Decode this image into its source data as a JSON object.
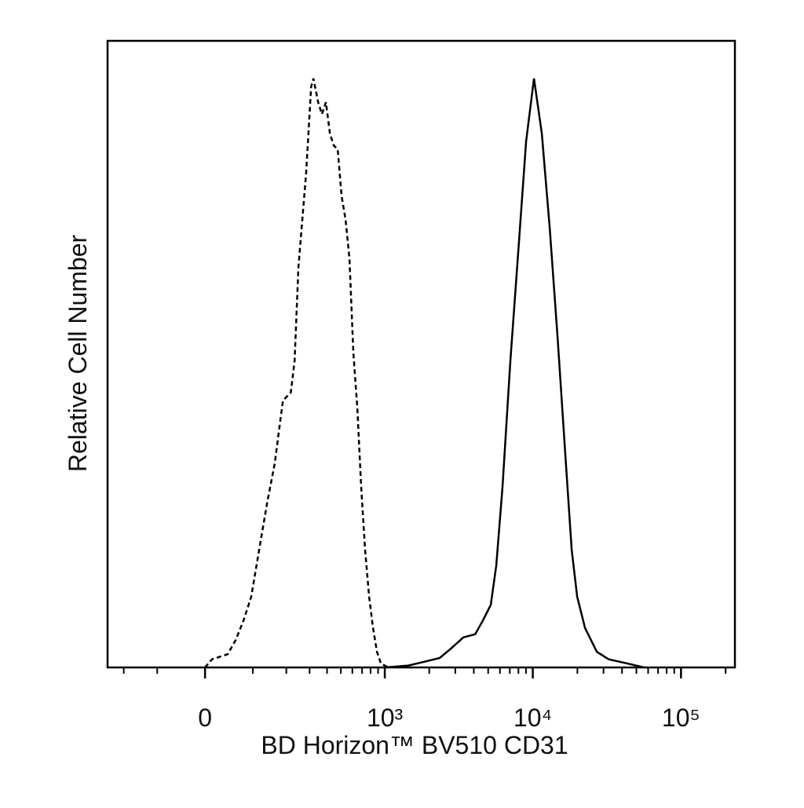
{
  "chart_data": {
    "type": "line",
    "xlabel": "BD Horizon™ BV510 CD31",
    "ylabel": "Relative Cell Number",
    "xscale": "biexponential",
    "xlim": [
      -266,
      231000
    ],
    "ylim": [
      0,
      100
    ],
    "xticks": [
      0,
      {
        "value": 1000,
        "label": "10³"
      },
      {
        "value": 10000,
        "label": "10⁴"
      },
      {
        "value": 100000,
        "label": "10⁵"
      }
    ],
    "xminorticks": [
      -200,
      -100,
      100,
      200,
      300,
      400,
      500,
      600,
      700,
      800,
      900,
      2000,
      3000,
      4000,
      5000,
      6000,
      7000,
      8000,
      9000,
      20000,
      30000,
      40000,
      50000,
      60000,
      70000,
      80000,
      90000,
      200000
    ],
    "series": [
      {
        "color": "#000000",
        "dash": true,
        "x": [
          0,
          13.5,
          44,
          61,
          78,
          96,
          116,
          138,
          161,
          174,
          188,
          217,
          232,
          248,
          283,
          308,
          320,
          346,
          368,
          393,
          419,
          446,
          475,
          506,
          539,
          573,
          610,
          649,
          690,
          734,
          782,
          832,
          884,
          942,
          1064
        ],
        "values": [
          0,
          1.3,
          2.1,
          4.4,
          7.5,
          11.3,
          18.8,
          26.3,
          32.6,
          37.6,
          42.6,
          43.9,
          48.9,
          63.9,
          78.9,
          92.7,
          94.0,
          90.2,
          88.3,
          90.2,
          85.2,
          83.3,
          82.7,
          75.2,
          71.4,
          65.2,
          50.1,
          41.4,
          28.8,
          18.8,
          11.3,
          6.3,
          2.5,
          0.6,
          0
        ]
      },
      {
        "color": "#000000",
        "dash": false,
        "x": [
          1000,
          1443,
          1845,
          2354,
          2829,
          3400,
          4084,
          4613,
          5210,
          5670,
          6250,
          7060,
          7980,
          9020,
          10190,
          11510,
          13010,
          14700,
          16600,
          18300,
          19930,
          22500,
          27030,
          32460,
          44000,
          56160
        ],
        "values": [
          0,
          0.3,
          0.9,
          1.5,
          3.1,
          4.8,
          5.3,
          7.5,
          10.0,
          16.3,
          28.8,
          48.9,
          66.4,
          84.0,
          94.0,
          85.2,
          70.2,
          52.6,
          33.8,
          18.8,
          11.3,
          6.3,
          2.5,
          1.3,
          0.6,
          0
        ]
      }
    ]
  }
}
